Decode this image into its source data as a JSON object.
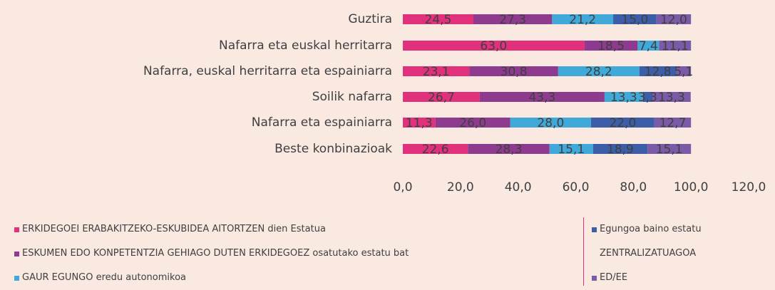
{
  "chart_data": {
    "type": "stacked-bar-horizontal",
    "categories": [
      "Guztira",
      "Nafarra eta euskal herritarra",
      "Nafarra, euskal herritarra eta espainiarra",
      "Soilik nafarra",
      "Nafarra eta espainiarra",
      "Beste konbinazioak"
    ],
    "series": [
      {
        "name": "ERKIDEGOEI ERABAKITZEKO-ESKUBIDEA AITORTZEN dien Estatua",
        "color": "#e2317c",
        "values": [
          24.5,
          63.0,
          23.1,
          26.7,
          11.3,
          22.6
        ],
        "value_labels": [
          "24,5",
          "63,0",
          "23,1",
          "26,7",
          "11,3",
          "22,6"
        ]
      },
      {
        "name": "ESKUMEN EDO KONPETENTZIA GEHIAGO DUTEN ERKIDEGOEZ osatutako estatu bat",
        "color": "#8e3a8e",
        "values": [
          27.3,
          18.5,
          30.8,
          43.3,
          26.0,
          28.3
        ],
        "value_labels": [
          "27,3",
          "18,5",
          "30,8",
          "43,3",
          "26,0",
          "28,3"
        ]
      },
      {
        "name": "GAUR EGUNGO eredu autonomikoa",
        "color": "#41a9d9",
        "values": [
          21.2,
          7.4,
          28.2,
          13.3,
          28.0,
          15.1
        ],
        "value_labels": [
          "21,2",
          "7,4",
          "28,2",
          "13,3",
          "28,0",
          "15,1"
        ]
      },
      {
        "name": "Egungoa baino estatu ZENTRALIZATUAGOA",
        "color": "#3c5ea9",
        "values": [
          15.0,
          null,
          12.8,
          3.3,
          22.0,
          18.9
        ],
        "value_labels": [
          "15,0",
          null,
          "12,8",
          "3,3",
          "22,0",
          "18,9"
        ]
      },
      {
        "name": "ED/EE",
        "color": "#7b5ba7",
        "values": [
          12.0,
          11.1,
          5.1,
          13.3,
          12.7,
          15.1
        ],
        "value_labels": [
          "12,0",
          "11,1",
          "5,1",
          "13,3",
          "12,7",
          "15,1"
        ]
      }
    ],
    "xlim": [
      0,
      120
    ],
    "xticks": [
      {
        "value": 0,
        "label": "0,0"
      },
      {
        "value": 20,
        "label": "20,0"
      },
      {
        "value": 40,
        "label": "40,0"
      },
      {
        "value": 60,
        "label": "60,0"
      },
      {
        "value": 80,
        "label": "80,0"
      },
      {
        "value": 100,
        "label": "100,0"
      },
      {
        "value": 120,
        "label": "120,0"
      }
    ]
  }
}
